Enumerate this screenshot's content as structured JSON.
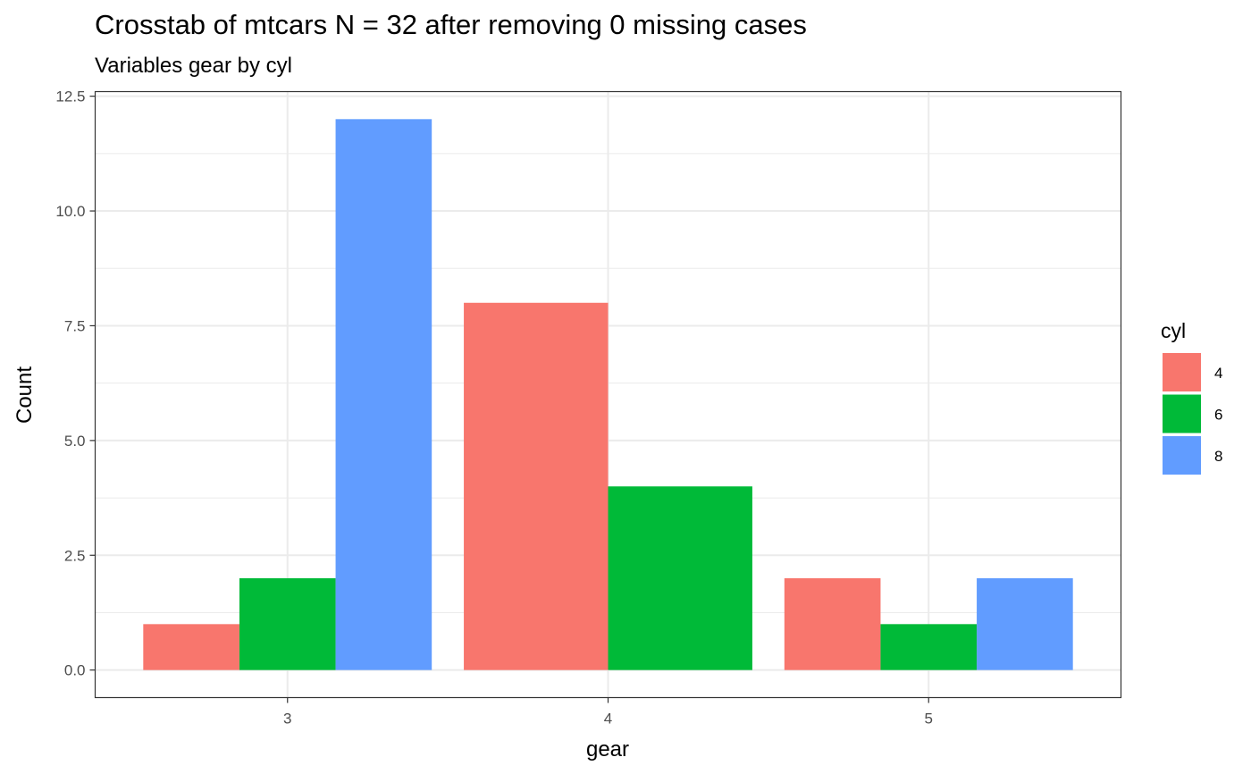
{
  "chart_data": {
    "type": "bar",
    "title": "Crosstab of mtcars N = 32 after removing 0 missing cases",
    "subtitle": "Variables gear by cyl",
    "xlabel": "gear",
    "ylabel": "Count",
    "categories": [
      "3",
      "4",
      "5"
    ],
    "series": [
      {
        "name": "4",
        "values": [
          1,
          8,
          2
        ]
      },
      {
        "name": "6",
        "values": [
          2,
          4,
          1
        ]
      },
      {
        "name": "8",
        "values": [
          12,
          0,
          2
        ]
      }
    ],
    "yticks": [
      0,
      2.5,
      5,
      7.5,
      10,
      12.5
    ],
    "ytick_labels": [
      "0.0",
      "2.5",
      "5.0",
      "7.5",
      "10.0",
      "12.5"
    ],
    "ylim": [
      -0.6,
      12.6
    ],
    "grid": true,
    "legend": {
      "title": "cyl",
      "position": "right"
    },
    "colors": [
      "#F8766D",
      "#00BA38",
      "#619CFF"
    ]
  }
}
